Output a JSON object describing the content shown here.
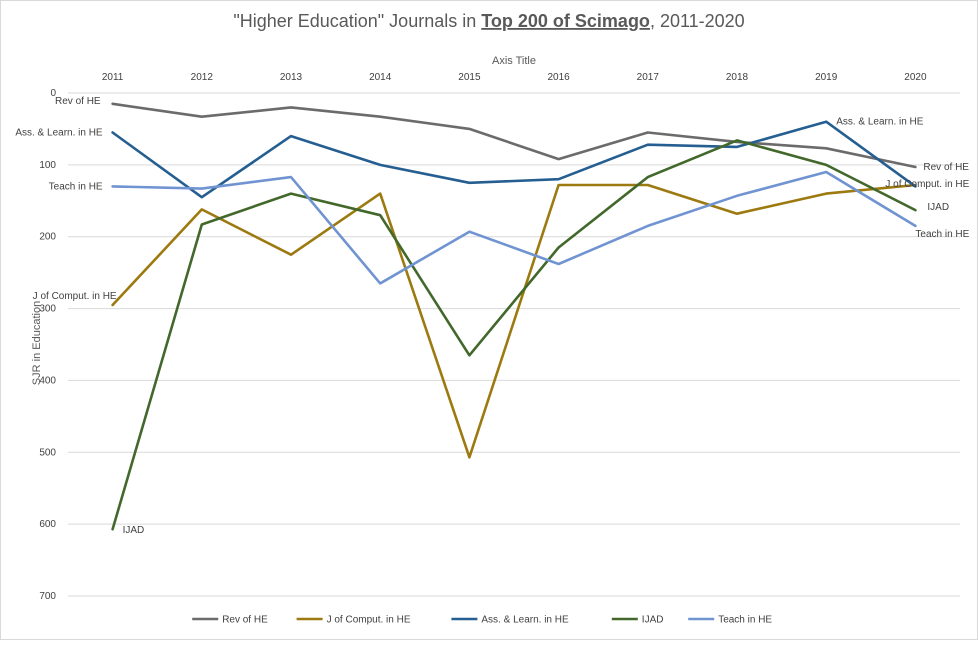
{
  "chart_data": {
    "type": "line",
    "title_parts": [
      "\"Higher Education\" Journals in ",
      "Top 200 of Scimago",
      ", 2011-2020"
    ],
    "xlabel": "Axis Title",
    "ylabel": "SJR in Education",
    "x": [
      "2011",
      "2012",
      "2013",
      "2014",
      "2015",
      "2016",
      "2017",
      "2018",
      "2019",
      "2020"
    ],
    "yticks": [
      0,
      100,
      200,
      300,
      400,
      500,
      600,
      700
    ],
    "ylim": [
      0,
      700
    ],
    "y_reversed": true,
    "x_axis_position": "top",
    "grid": true,
    "legend_position": "bottom",
    "series": [
      {
        "name": "Rev of HE",
        "color": "#6b6b6b",
        "values": [
          15,
          33,
          20,
          33,
          50,
          92,
          55,
          68,
          77,
          103
        ]
      },
      {
        "name": "J of Comput. in HE",
        "color": "#9c7a10",
        "values": [
          295,
          162,
          225,
          140,
          507,
          128,
          128,
          168,
          140,
          128
        ]
      },
      {
        "name": "Ass. & Learn. in HE",
        "color": "#255e91",
        "values": [
          55,
          145,
          60,
          100,
          125,
          120,
          72,
          75,
          40,
          130
        ]
      },
      {
        "name": "IJAD",
        "color": "#43682b",
        "values": [
          607,
          183,
          140,
          170,
          365,
          215,
          117,
          66,
          100,
          163
        ]
      },
      {
        "name": "Teach in HE",
        "color": "#7094d1",
        "values": [
          130,
          133,
          117,
          265,
          193,
          238,
          185,
          143,
          110,
          185
        ]
      }
    ],
    "point_labels": [
      {
        "series": 0,
        "index": 0,
        "text": "Rev of HE",
        "anchor": "end",
        "dx": -12,
        "dy": 0
      },
      {
        "series": 0,
        "index": 9,
        "text": "Rev of HE",
        "anchor": "start",
        "dx": 8,
        "dy": 3
      },
      {
        "series": 2,
        "index": 0,
        "text": "Ass. & Learn. in HE",
        "anchor": "end",
        "dx": -10,
        "dy": 3
      },
      {
        "series": 2,
        "index": 8,
        "text": "Ass. & Learn. in HE",
        "anchor": "start",
        "dx": 10,
        "dy": 3
      },
      {
        "series": 4,
        "index": 0,
        "text": "Teach in HE",
        "anchor": "end",
        "dx": -10,
        "dy": 3
      },
      {
        "series": 4,
        "index": 9,
        "text": "Teach in HE",
        "anchor": "start",
        "dx": 0,
        "dy": 11
      },
      {
        "series": 1,
        "index": 0,
        "text": "J of Comput. in HE",
        "anchor": "end",
        "dx": 4,
        "dy": -6
      },
      {
        "series": 1,
        "index": 9,
        "text": "J of Comput. in HE",
        "anchor": "start",
        "dx": -30,
        "dy": 2
      },
      {
        "series": 3,
        "index": 0,
        "text": "IJAD",
        "anchor": "start",
        "dx": 10,
        "dy": 4
      },
      {
        "series": 3,
        "index": 9,
        "text": "IJAD",
        "anchor": "start",
        "dx": 12,
        "dy": 0
      }
    ]
  }
}
